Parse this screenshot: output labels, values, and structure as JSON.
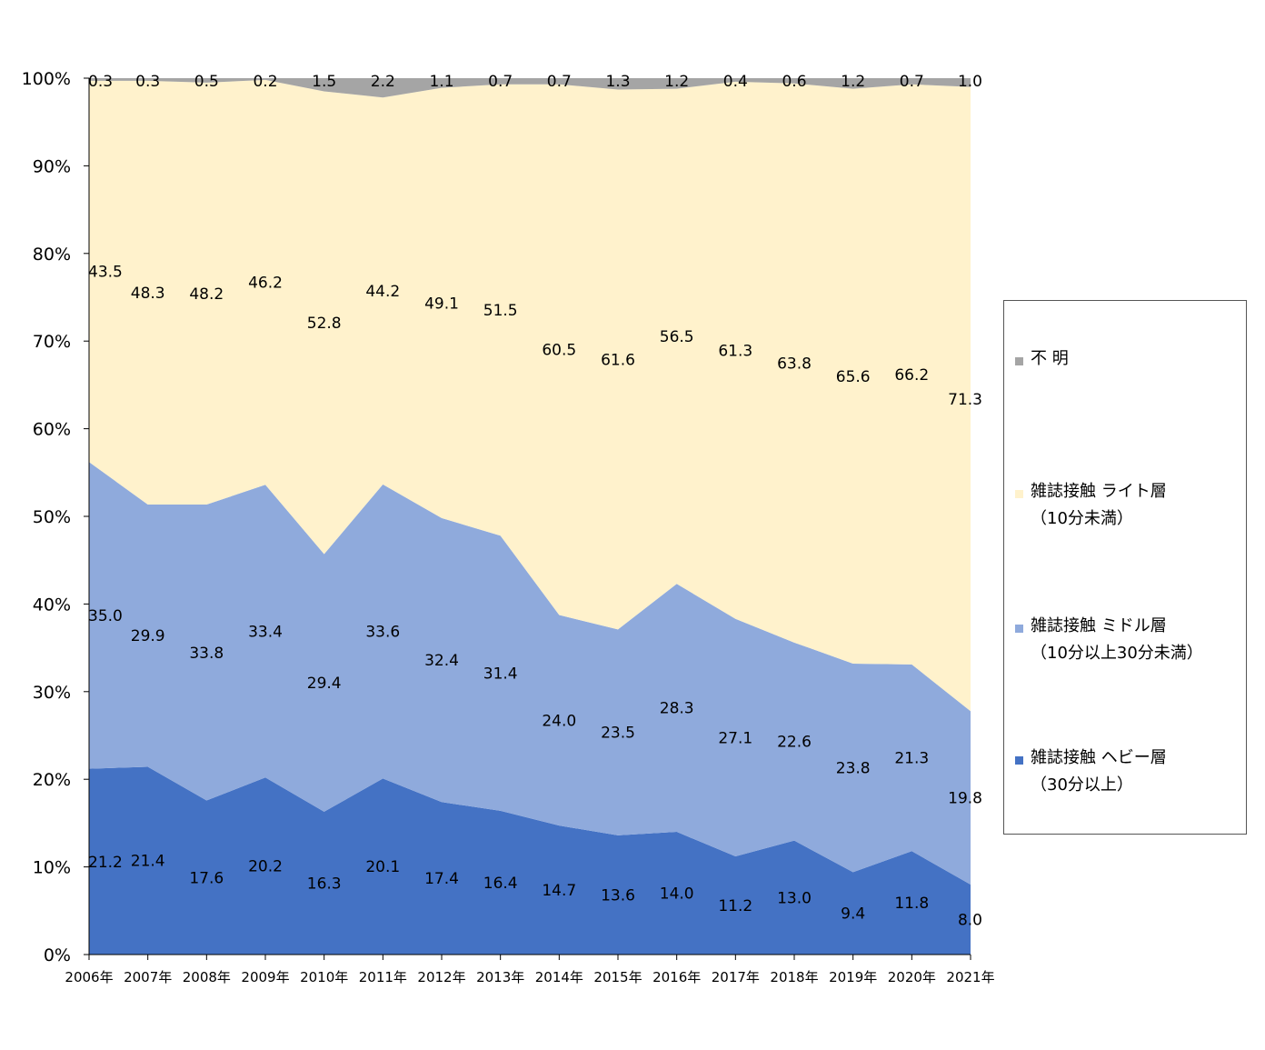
{
  "chart_data": {
    "type": "area",
    "stacked": true,
    "normalized": true,
    "categories": [
      "2006年",
      "2007年",
      "2008年",
      "2009年",
      "2010年",
      "2011年",
      "2012年",
      "2013年",
      "2014年",
      "2015年",
      "2016年",
      "2017年",
      "2018年",
      "2019年",
      "2020年",
      "2021年"
    ],
    "y_ticks": [
      "0%",
      "10%",
      "20%",
      "30%",
      "40%",
      "50%",
      "60%",
      "70%",
      "80%",
      "90%",
      "100%"
    ],
    "ylim": [
      0,
      100
    ],
    "legend_position": "right",
    "series": [
      {
        "key": "heavy",
        "name": "雑誌接触 ヘビー層",
        "name_sub": "（30分以上）",
        "color": "#4472C4",
        "values": [
          21.2,
          21.4,
          17.6,
          20.2,
          16.3,
          20.1,
          17.4,
          16.4,
          14.7,
          13.6,
          14.0,
          11.2,
          13.0,
          9.4,
          11.8,
          8.0
        ]
      },
      {
        "key": "middle",
        "name": "雑誌接触 ミドル層",
        "name_sub": "（10分以上30分未満）",
        "color": "#8FAADC",
        "values": [
          35.0,
          29.9,
          33.8,
          33.4,
          29.4,
          33.6,
          32.4,
          31.4,
          24.0,
          23.5,
          28.3,
          27.1,
          22.6,
          23.8,
          21.3,
          19.8
        ]
      },
      {
        "key": "light",
        "name": "雑誌接触 ライト層",
        "name_sub": "（10分未満）",
        "color": "#FFF2CC",
        "values": [
          43.5,
          48.3,
          48.2,
          46.2,
          52.8,
          44.2,
          49.1,
          51.5,
          60.5,
          61.6,
          56.5,
          61.3,
          63.8,
          65.6,
          66.2,
          71.3
        ]
      },
      {
        "key": "unknown",
        "name": "不 明",
        "name_sub": "",
        "color": "#A5A5A5",
        "values": [
          0.3,
          0.3,
          0.5,
          0.2,
          1.5,
          2.2,
          1.1,
          0.7,
          0.7,
          1.3,
          1.2,
          0.4,
          0.6,
          1.2,
          0.7,
          1.0
        ]
      }
    ]
  }
}
